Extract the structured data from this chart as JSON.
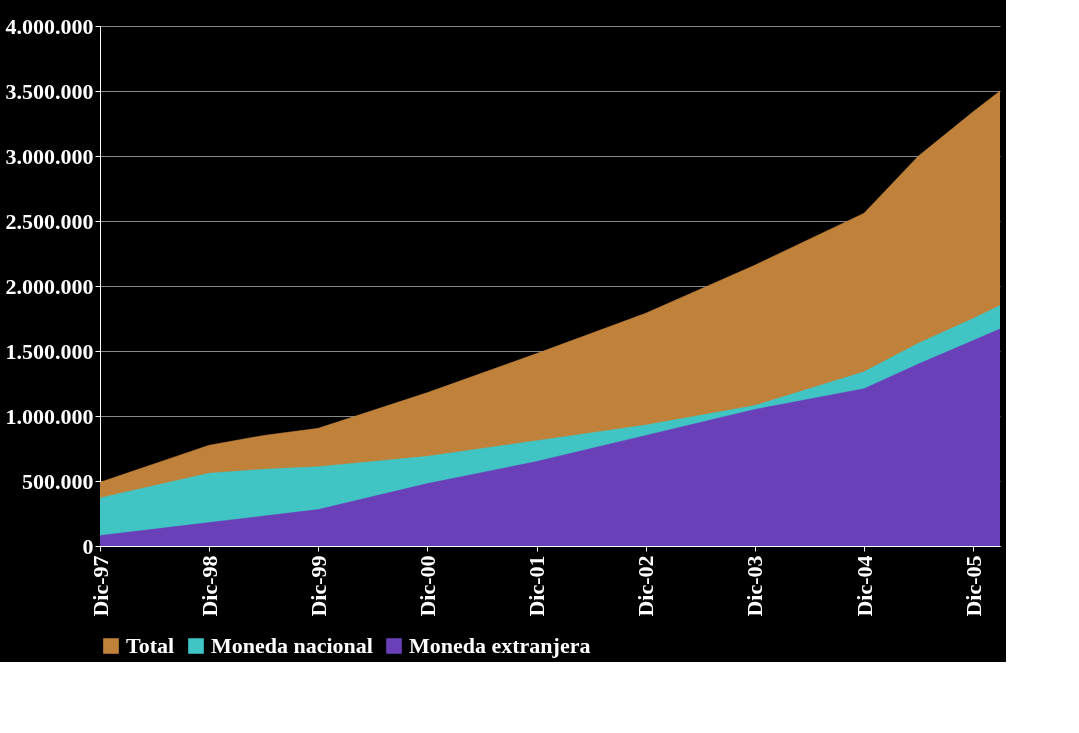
{
  "chart_data": {
    "type": "area",
    "x": [
      "1997-12",
      "1998-12",
      "1999-06",
      "1999-12",
      "2000-12",
      "2001-12",
      "2002-12",
      "2003-12",
      "2004-12",
      "2005-06",
      "2005-12",
      "2006-03"
    ],
    "series": [
      {
        "name": "Total",
        "color": "#c0823a",
        "values": [
          490000,
          775000,
          850000,
          905000,
          1180000,
          1480000,
          1790000,
          2160000,
          2560000,
          3000000,
          3340000,
          3500000
        ]
      },
      {
        "name": "Moneda nacional",
        "color": "#40c4c4",
        "values": [
          370000,
          560000,
          590000,
          610000,
          690000,
          810000,
          930000,
          1080000,
          1340000,
          1560000,
          1750000,
          1850000
        ]
      },
      {
        "name": "Moneda extranjera",
        "color": "#6a40b8",
        "values": [
          80000,
          180000,
          230000,
          280000,
          480000,
          650000,
          850000,
          1050000,
          1210000,
          1400000,
          1580000,
          1670000
        ]
      }
    ],
    "xlim": [
      "1997-12",
      "2006-03"
    ],
    "xticks": [
      {
        "value": "1997-12",
        "label": "Dic-97"
      },
      {
        "value": "1998-12",
        "label": "Dic-98"
      },
      {
        "value": "1999-12",
        "label": "Dic-99"
      },
      {
        "value": "2000-12",
        "label": "Dic-00"
      },
      {
        "value": "2001-12",
        "label": "Dic-01"
      },
      {
        "value": "2002-12",
        "label": "Dic-02"
      },
      {
        "value": "2003-12",
        "label": "Dic-03"
      },
      {
        "value": "2004-12",
        "label": "Dic-04"
      },
      {
        "value": "2005-12",
        "label": "Dic-05"
      }
    ],
    "ylim": [
      0,
      4000000
    ],
    "yticks": [
      0,
      {
        "value": 500000,
        "label": "500.000"
      },
      {
        "value": 1000000,
        "label": "1.000.000"
      },
      {
        "value": 1500000,
        "label": "1.500.000"
      },
      {
        "value": 2000000,
        "label": "2.000.000"
      },
      {
        "value": 2500000,
        "label": "2.500.000"
      },
      {
        "value": 3000000,
        "label": "3.000.000"
      },
      {
        "value": 3500000,
        "label": "3.500.000"
      },
      {
        "value": 4000000,
        "label": "4.000.000"
      }
    ],
    "grid": "y",
    "legend": "bottom"
  }
}
